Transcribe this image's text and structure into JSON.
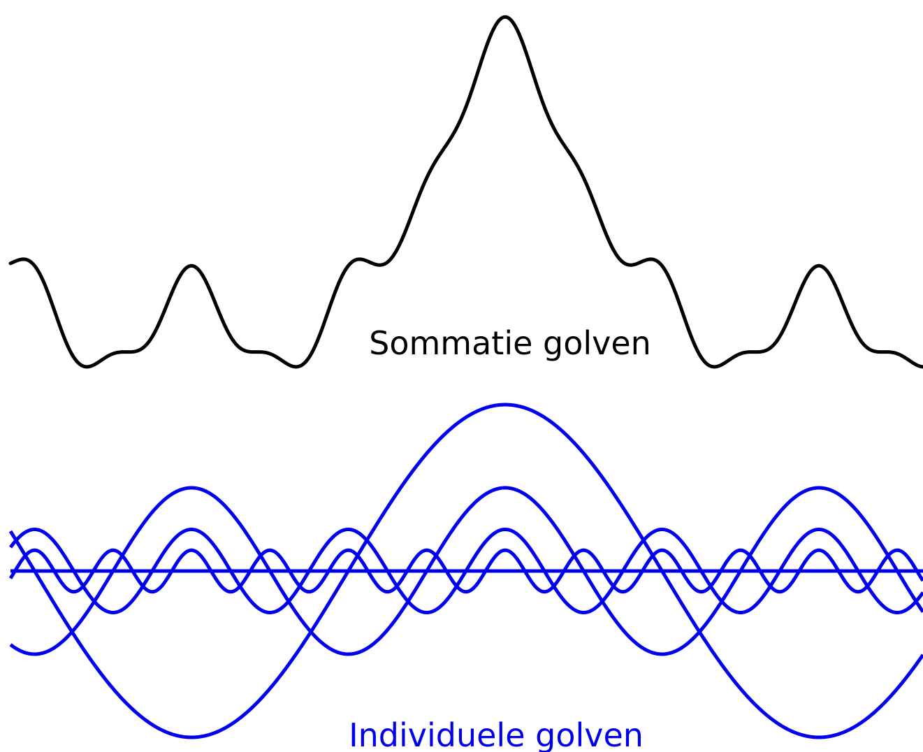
{
  "labels": {
    "sum": "Sommatie golven",
    "individual": "Individuele golven"
  },
  "colors": {
    "sum": "#000000",
    "individual": "#0000ee",
    "background": "#ffffff"
  },
  "waves": {
    "individual": [
      {
        "harmonic": 1,
        "amplitude": 1.0
      },
      {
        "harmonic": 2,
        "amplitude": 0.5
      },
      {
        "harmonic": 4,
        "amplitude": 0.25
      },
      {
        "harmonic": 8,
        "amplitude": 0.125
      }
    ],
    "sum": "sum of individual waves"
  }
}
